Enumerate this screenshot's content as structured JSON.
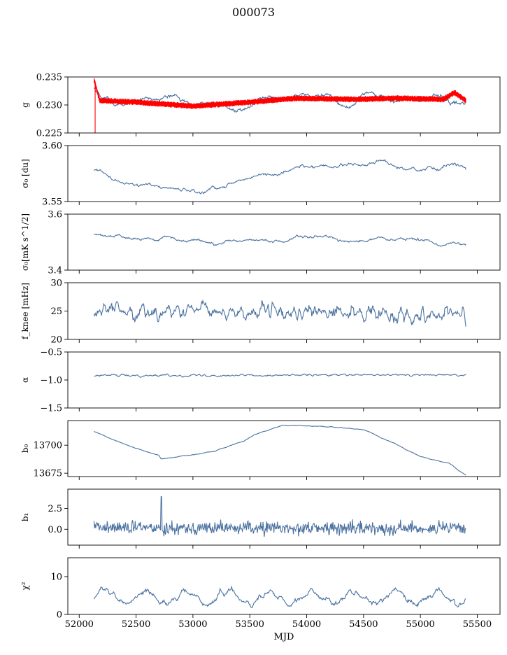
{
  "title": "000073",
  "xlabel": "MJD",
  "xlim": [
    51900,
    55700
  ],
  "x_ticks": [
    52000,
    52500,
    53000,
    53500,
    54000,
    54500,
    55000,
    55500
  ],
  "colors": {
    "series": "#4c72a0",
    "highlight": "#ff0000",
    "axis": "#000000"
  },
  "chart_data": [
    {
      "type": "line",
      "ylabel": "g",
      "ylim": [
        0.225,
        0.235
      ],
      "y_ticks": [
        "0.225",
        "0.230",
        "0.235"
      ],
      "y_tick_values": [
        0.225,
        0.23,
        0.235
      ],
      "x_range": [
        52130,
        55400
      ],
      "level": [
        [
          52130,
          0.2325
        ],
        [
          52200,
          0.2302
        ],
        [
          52600,
          0.231
        ],
        [
          53000,
          0.2298
        ],
        [
          53400,
          0.2305
        ],
        [
          53800,
          0.2315
        ],
        [
          54200,
          0.2312
        ],
        [
          54600,
          0.2313
        ],
        [
          55000,
          0.2308
        ],
        [
          55250,
          0.2315
        ],
        [
          55400,
          0.231
        ]
      ],
      "noise": 0.0013,
      "smooth": 14,
      "overlay": {
        "color": "#ff0000",
        "level": [
          [
            52130,
            0.2345
          ],
          [
            52180,
            0.2308
          ],
          [
            52500,
            0.2305
          ],
          [
            53000,
            0.2298
          ],
          [
            53500,
            0.2305
          ],
          [
            53900,
            0.2312
          ],
          [
            54400,
            0.231
          ],
          [
            54800,
            0.2312
          ],
          [
            55200,
            0.231
          ],
          [
            55300,
            0.2322
          ],
          [
            55400,
            0.2308
          ]
        ],
        "band": 0.00055,
        "spike": {
          "x": 52140,
          "y": 0.2245
        }
      }
    },
    {
      "type": "line",
      "ylabel": "σ₀ [du]",
      "ylim": [
        3.55,
        3.6
      ],
      "y_ticks": [
        "3.55",
        "3.60"
      ],
      "y_tick_values": [
        3.55,
        3.6
      ],
      "x_range": [
        52130,
        55400
      ],
      "level": [
        [
          52130,
          3.58
        ],
        [
          52400,
          3.565
        ],
        [
          52800,
          3.562
        ],
        [
          53100,
          3.56
        ],
        [
          53500,
          3.57
        ],
        [
          53800,
          3.578
        ],
        [
          54200,
          3.582
        ],
        [
          54600,
          3.585
        ],
        [
          55000,
          3.578
        ],
        [
          55300,
          3.586
        ],
        [
          55400,
          3.581
        ]
      ],
      "noise": 0.0035,
      "smooth": 10
    },
    {
      "type": "line",
      "ylabel": "σ₀[mK s^1/2]",
      "ylim": [
        3.4,
        3.6
      ],
      "y_ticks": [
        "3.4",
        "3.6"
      ],
      "y_tick_values": [
        3.4,
        3.6
      ],
      "x_range": [
        52130,
        55400
      ],
      "level": [
        [
          52130,
          3.525
        ],
        [
          52500,
          3.52
        ],
        [
          52800,
          3.505
        ],
        [
          53300,
          3.5
        ],
        [
          53700,
          3.505
        ],
        [
          54200,
          3.515
        ],
        [
          54700,
          3.505
        ],
        [
          55100,
          3.508
        ],
        [
          55400,
          3.49
        ]
      ],
      "noise": 0.012,
      "smooth": 10
    },
    {
      "type": "line",
      "ylabel": "f_knee [mHz]",
      "ylim": [
        20,
        30
      ],
      "y_ticks": [
        "20",
        "25",
        "30"
      ],
      "y_tick_values": [
        20,
        25,
        30
      ],
      "x_range": [
        52130,
        55400
      ],
      "level": [
        [
          52130,
          25.0
        ],
        [
          55400,
          24.5
        ]
      ],
      "noise": 1.6,
      "smooth": 2
    },
    {
      "type": "line",
      "ylabel": "α",
      "ylim": [
        -1.5,
        -0.5
      ],
      "y_ticks": [
        "−1.5",
        "−1.0",
        "−0.5"
      ],
      "y_tick_values": [
        -1.5,
        -1.0,
        -0.5
      ],
      "x_range": [
        52130,
        55400
      ],
      "level": [
        [
          52130,
          -0.92
        ],
        [
          55400,
          -0.91
        ]
      ],
      "noise": 0.022,
      "smooth": 2
    },
    {
      "type": "line",
      "ylabel": "b₀",
      "ylim": [
        13672,
        13722
      ],
      "y_ticks": [
        "13675",
        "13700"
      ],
      "y_tick_values": [
        13675,
        13700
      ],
      "x_range": [
        52130,
        55400
      ],
      "level": [
        [
          52130,
          13713
        ],
        [
          52250,
          13707
        ],
        [
          52450,
          13699
        ],
        [
          52700,
          13691
        ],
        [
          52720,
          13688
        ],
        [
          52900,
          13690
        ],
        [
          53200,
          13695
        ],
        [
          53450,
          13704
        ],
        [
          53550,
          13710
        ],
        [
          53800,
          13718
        ],
        [
          54100,
          13717
        ],
        [
          54500,
          13714
        ],
        [
          54800,
          13700
        ],
        [
          55000,
          13690
        ],
        [
          55250,
          13684
        ],
        [
          55400,
          13673
        ]
      ],
      "noise": 0.5,
      "smooth": 5
    },
    {
      "type": "line",
      "ylabel": "b₁",
      "ylim": [
        -1.9,
        4.8
      ],
      "y_ticks": [
        "0.0",
        "2.5"
      ],
      "y_tick_values": [
        0,
        2.5
      ],
      "x_range": [
        52130,
        55400
      ],
      "level": [
        [
          52130,
          0.2
        ],
        [
          55400,
          0.1
        ]
      ],
      "noise": 0.55,
      "smooth": 1,
      "spike": {
        "x": 52720,
        "y": 3.9
      }
    },
    {
      "type": "line",
      "ylabel": "χ²",
      "ylim": [
        0,
        15
      ],
      "y_ticks": [
        "0",
        "10"
      ],
      "y_tick_values": [
        0,
        10
      ],
      "x_range": [
        52130,
        55400
      ],
      "level": [
        [
          52130,
          4.5
        ],
        [
          55400,
          4.5
        ]
      ],
      "noise": 1.1,
      "smooth": 3,
      "seasonal": {
        "amplitude": 1.6,
        "period": 365
      }
    }
  ]
}
